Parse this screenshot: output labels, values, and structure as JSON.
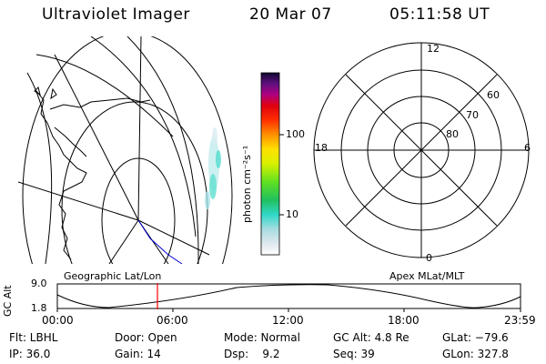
{
  "header": {
    "instrument": "Ultraviolet Imager",
    "date": "20 Mar 07",
    "time": "05:11:58 UT"
  },
  "colorbar": {
    "unit_label": "photon cm⁻²s⁻¹",
    "tick_100": "100",
    "tick_10": "10"
  },
  "polar_plot": {
    "mlt_12": "12",
    "mlt_18": "18",
    "mlt_6": "6",
    "mlt_0": "0",
    "lat_60": "60",
    "lat_70": "70",
    "lat_80": "80"
  },
  "timeline": {
    "left_title": "Geographic Lat/Lon",
    "right_title": "Apex MLat/MLT",
    "y_label": "GC Alt",
    "y_max": "9.0",
    "y_min": "1.8",
    "x_ticks": [
      "00:00",
      "06:00",
      "12:00",
      "18:00",
      "23:59"
    ]
  },
  "info": {
    "filter": "Flt: LBHL",
    "door": "Door: Open",
    "mode": "Mode: Normal",
    "gc_alt": "GC Alt: 4.8 Re",
    "glat": "GLat: −79.6",
    "ip": "IP: 36.0",
    "gain": "Gain: 14",
    "dsp": "Dsp:    9.2",
    "seq": "Seq: 39",
    "glon": "GLon: 327.8"
  },
  "colors": {
    "current_time_marker": "#ff0000",
    "continent": "#000000",
    "track": "#0000cc"
  }
}
